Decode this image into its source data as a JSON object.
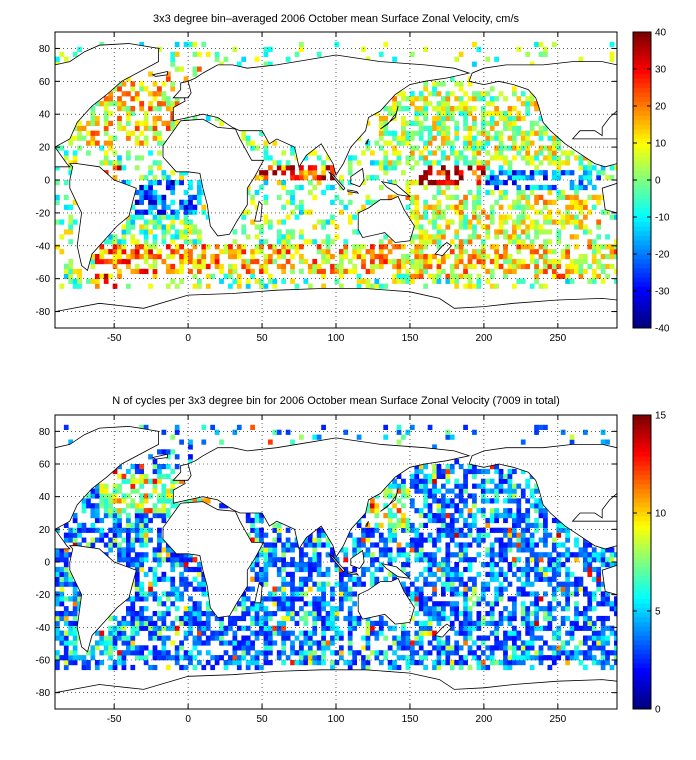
{
  "chart_data": [
    {
      "type": "heatmap",
      "title": "3x3 degree bin–averaged 2006 October mean Surface Zonal Velocity, cm/s",
      "xlabel": "",
      "ylabel": "",
      "xlim": [
        -90,
        290
      ],
      "ylim": [
        -90,
        90
      ],
      "x_ticks": [
        -50,
        0,
        50,
        100,
        150,
        200,
        250
      ],
      "y_ticks": [
        -80,
        -60,
        -40,
        -20,
        0,
        20,
        40,
        60,
        80
      ],
      "x_tick_labels": [
        "-50",
        "0",
        "50",
        "100",
        "150",
        "200",
        "250"
      ],
      "y_tick_labels": [
        "-80",
        "-60",
        "-40",
        "-20",
        "0",
        "20",
        "40",
        "60",
        "80"
      ],
      "grid": true,
      "bin_size_deg": 3,
      "colormap": "jet",
      "colorbar": {
        "min": -40,
        "max": 40,
        "ticks": [
          -40,
          -30,
          -20,
          -10,
          0,
          10,
          20,
          30,
          40
        ],
        "tick_labels": [
          "-40",
          "-30",
          "-20",
          "-10",
          "0",
          "10",
          "20",
          "30",
          "40"
        ]
      },
      "value_regions": [
        {
          "lon": [
            -63,
            -45
          ],
          "lat": [
            -65,
            -38
          ],
          "value": 22
        },
        {
          "lon": [
            -45,
            20
          ],
          "lat": [
            -58,
            -38
          ],
          "value": 18
        },
        {
          "lon": [
            20,
            150
          ],
          "lat": [
            -58,
            -38
          ],
          "value": 14
        },
        {
          "lon": [
            150,
            290
          ],
          "lat": [
            -60,
            -38
          ],
          "value": 12
        },
        {
          "lon": [
            -45,
            10
          ],
          "lat": [
            -20,
            0
          ],
          "value": -22
        },
        {
          "lon": [
            -75,
            -45
          ],
          "lat": [
            -5,
            10
          ],
          "value": 30
        },
        {
          "lon": [
            40,
            100
          ],
          "lat": [
            0,
            10
          ],
          "value": 25
        },
        {
          "lon": [
            155,
            200
          ],
          "lat": [
            -2,
            8
          ],
          "value": 32
        },
        {
          "lon": [
            200,
            280
          ],
          "lat": [
            -5,
            5
          ],
          "value": -20
        },
        {
          "lon": [
            130,
            280
          ],
          "lat": [
            -40,
            -10
          ],
          "value": 8
        },
        {
          "lon": [
            130,
            280
          ],
          "lat": [
            10,
            55
          ],
          "value": 5
        },
        {
          "lon": [
            -80,
            10
          ],
          "lat": [
            20,
            70
          ],
          "value": 12
        },
        {
          "lon": [
            -70,
            10
          ],
          "lat": [
            -40,
            -20
          ],
          "value": 0
        }
      ]
    },
    {
      "type": "heatmap",
      "title": "N of cycles per 3x3 degree bin for 2006 October mean Surface Zonal Velocity (7009 in total)",
      "xlabel": "",
      "ylabel": "",
      "xlim": [
        -90,
        290
      ],
      "ylim": [
        -90,
        90
      ],
      "x_ticks": [
        -50,
        0,
        50,
        100,
        150,
        200,
        250
      ],
      "y_ticks": [
        -80,
        -60,
        -40,
        -20,
        0,
        20,
        40,
        60,
        80
      ],
      "x_tick_labels": [
        "-50",
        "0",
        "50",
        "100",
        "150",
        "200",
        "250"
      ],
      "y_tick_labels": [
        "-80",
        "-60",
        "-40",
        "-20",
        "0",
        "20",
        "40",
        "60",
        "80"
      ],
      "grid": true,
      "bin_size_deg": 3,
      "colormap": "jet",
      "colorbar": {
        "min": 0,
        "max": 15,
        "ticks": [
          0,
          5,
          10,
          15
        ],
        "tick_labels": [
          "0",
          "5",
          "10",
          "15"
        ]
      },
      "value_regions": [
        {
          "lon": [
            -90,
            290
          ],
          "lat": [
            -63,
            65
          ],
          "value": 2
        },
        {
          "lon": [
            -60,
            20
          ],
          "lat": [
            30,
            55
          ],
          "value": 6
        },
        {
          "lon": [
            120,
            150
          ],
          "lat": [
            20,
            45
          ],
          "value": 6
        },
        {
          "lon": [
            -80,
            -50
          ],
          "lat": [
            -60,
            -40
          ],
          "value": 4
        }
      ]
    }
  ]
}
